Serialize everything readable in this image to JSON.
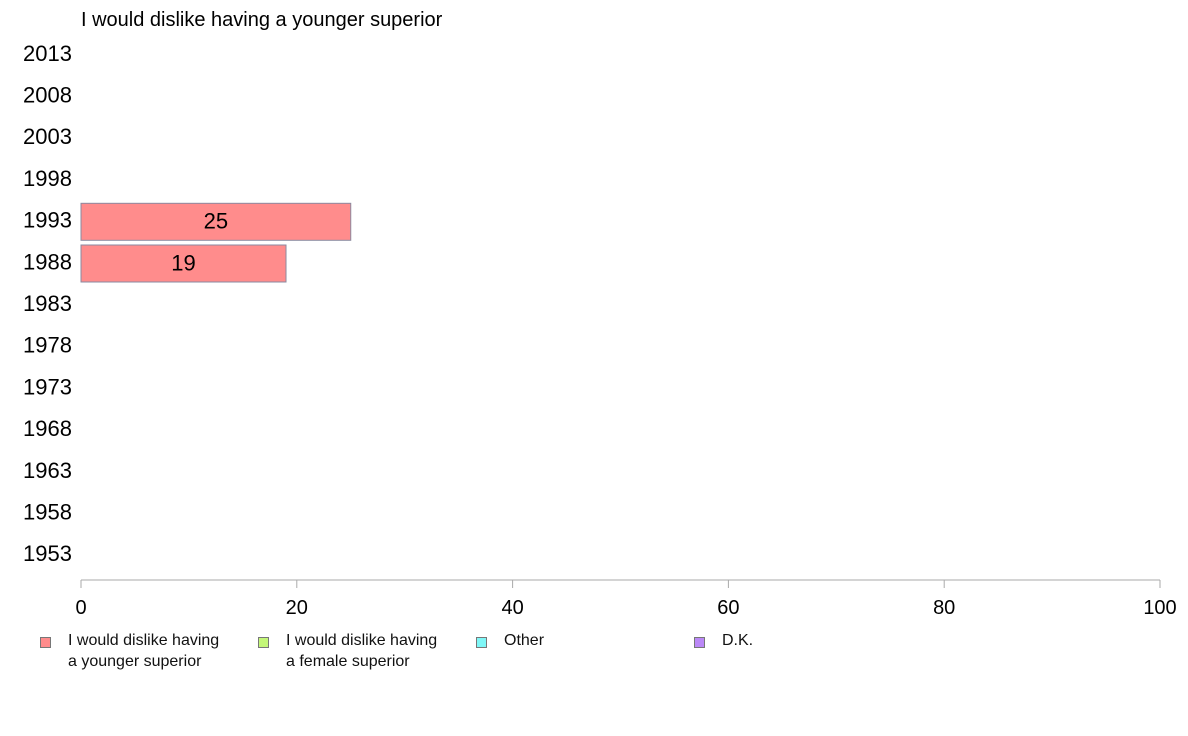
{
  "chart_data": {
    "type": "bar",
    "orientation": "horizontal",
    "title": "I would dislike having a younger superior",
    "categories": [
      "2013",
      "2008",
      "2003",
      "1998",
      "1993",
      "1988",
      "1983",
      "1978",
      "1973",
      "1968",
      "1963",
      "1958",
      "1953"
    ],
    "series": [
      {
        "name": "I would dislike having a younger superior",
        "color": "#ff8c8c",
        "values": [
          null,
          null,
          null,
          null,
          25,
          19,
          null,
          null,
          null,
          null,
          null,
          null,
          null
        ],
        "labels": [
          "",
          "",
          "",
          "",
          "25",
          "19",
          "",
          "",
          "",
          "",
          "",
          "",
          ""
        ]
      },
      {
        "name": "I would dislike having a female superior",
        "color": "#c4f779",
        "values": [
          null,
          null,
          null,
          null,
          null,
          null,
          null,
          null,
          null,
          null,
          null,
          null,
          null
        ]
      },
      {
        "name": "Other",
        "color": "#7ff7f7",
        "values": [
          null,
          null,
          null,
          null,
          null,
          null,
          null,
          null,
          null,
          null,
          null,
          null,
          null
        ]
      },
      {
        "name": "D.K.",
        "color": "#bb88f7",
        "values": [
          null,
          null,
          null,
          null,
          null,
          null,
          null,
          null,
          null,
          null,
          null,
          null,
          null
        ]
      }
    ],
    "xlim": [
      0,
      100
    ],
    "xticks": [
      0,
      20,
      40,
      60,
      80,
      100
    ],
    "xlabel": "",
    "ylabel": "",
    "grid": false,
    "legend_position": "bottom"
  },
  "legend": {
    "items": [
      {
        "label": "I would dislike having\na younger superior",
        "color": "#ff8c8c"
      },
      {
        "label": "I would dislike having\na female superior",
        "color": "#c4f779"
      },
      {
        "label": "Other",
        "color": "#7ff7f7"
      },
      {
        "label": "D.K.",
        "color": "#bb88f7"
      }
    ]
  }
}
